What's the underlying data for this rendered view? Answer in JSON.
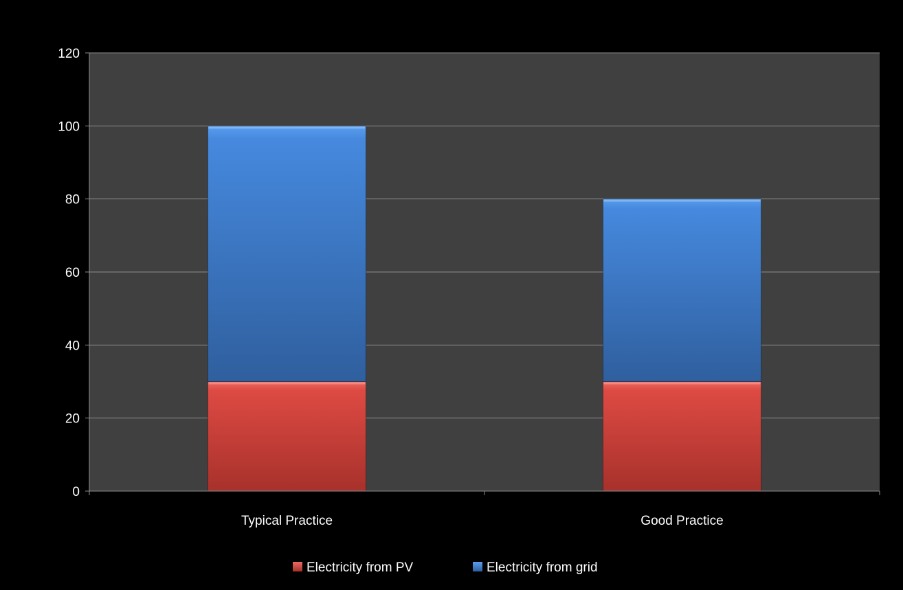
{
  "chart_data": {
    "type": "bar",
    "stacked": true,
    "categories": [
      "Typical Practice",
      "Good Practice"
    ],
    "series": [
      {
        "name": "Electricity from PV",
        "values": [
          30,
          30
        ],
        "color": "#d9463f"
      },
      {
        "name": "Electricity from grid",
        "values": [
          70,
          50
        ],
        "color": "#3d7cd0"
      }
    ],
    "ylim": [
      0,
      120
    ],
    "yticks": [
      "0",
      "20",
      "40",
      "60",
      "80",
      "100",
      "120"
    ],
    "title": "",
    "xlabel": "",
    "ylabel": "",
    "grid": true,
    "legend_position": "bottom",
    "colors": {
      "page_background": "#000000",
      "plot_background": "#404040",
      "gridline": "#8c8c8c",
      "axis": "#8c8c8c",
      "text": "#ffffff"
    }
  }
}
